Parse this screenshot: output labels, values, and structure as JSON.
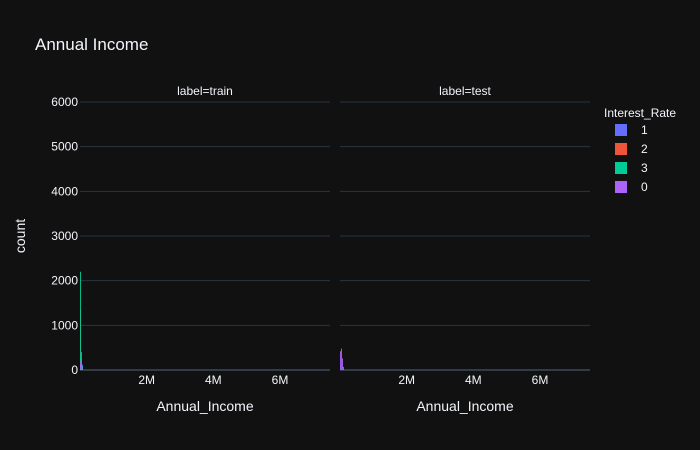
{
  "chart_data": {
    "type": "bar",
    "title": "Annual Income",
    "ylabel": "count",
    "xlabel": "Annual_Income",
    "ylim": [
      0,
      6000
    ],
    "xlim": [
      0,
      7500000
    ],
    "yticks": [
      {
        "value": 0,
        "label": "0"
      },
      {
        "value": 1000,
        "label": "1000"
      },
      {
        "value": 2000,
        "label": "2000"
      },
      {
        "value": 3000,
        "label": "3000"
      },
      {
        "value": 4000,
        "label": "4000"
      },
      {
        "value": 5000,
        "label": "5000"
      },
      {
        "value": 6000,
        "label": "6000"
      }
    ],
    "xticks": [
      {
        "value": 2000000,
        "label": "2M"
      },
      {
        "value": 4000000,
        "label": "4M"
      },
      {
        "value": 6000000,
        "label": "6M"
      }
    ],
    "legend": {
      "title": "Interest_Rate",
      "placement": "right"
    },
    "grid": true,
    "series": [
      {
        "name": "1",
        "color": "#636efa"
      },
      {
        "name": "2",
        "color": "#EF553B"
      },
      {
        "name": "3",
        "color": "#00cc96"
      },
      {
        "name": "0",
        "color": "#ab63fa"
      }
    ],
    "facets": [
      {
        "label": "label=train",
        "bars": [
          {
            "series": "1",
            "x0": 0,
            "x1": 30000,
            "value": 300
          },
          {
            "series": "1",
            "x0": 30000,
            "x1": 60000,
            "value": 240
          },
          {
            "series": "1",
            "x0": 60000,
            "x1": 90000,
            "value": 120
          },
          {
            "series": "2",
            "x0": 0,
            "x1": 30000,
            "value": 1350
          },
          {
            "series": "2",
            "x0": 30000,
            "x1": 60000,
            "value": 250
          },
          {
            "series": "2",
            "x0": 60000,
            "x1": 90000,
            "value": 60
          },
          {
            "series": "3",
            "x0": 0,
            "x1": 30000,
            "value": 2200
          },
          {
            "series": "3",
            "x0": 30000,
            "x1": 60000,
            "value": 400
          },
          {
            "series": "3",
            "x0": 60000,
            "x1": 90000,
            "value": 80
          },
          {
            "series": "0",
            "x0": 0,
            "x1": 30000,
            "value": 180
          },
          {
            "series": "0",
            "x0": 30000,
            "x1": 60000,
            "value": 90
          },
          {
            "series": "0",
            "x0": 60000,
            "x1": 90000,
            "value": 30
          }
        ]
      },
      {
        "label": "label=test",
        "bars": [
          {
            "series": "0",
            "x0": 0,
            "x1": 30000,
            "value": 420
          },
          {
            "series": "0",
            "x0": 30000,
            "x1": 60000,
            "value": 480
          },
          {
            "series": "0",
            "x0": 60000,
            "x1": 90000,
            "value": 260
          },
          {
            "series": "0",
            "x0": 90000,
            "x1": 120000,
            "value": 70
          }
        ]
      }
    ]
  }
}
